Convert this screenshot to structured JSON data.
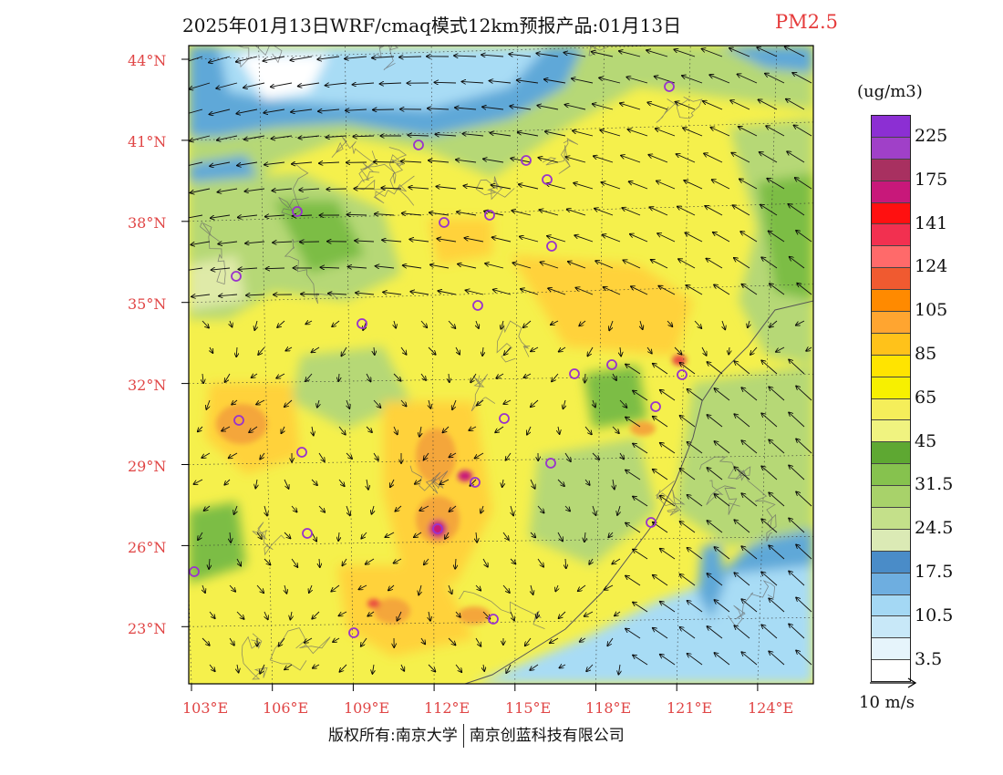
{
  "title": {
    "main": "2025年01月13日WRF/cmaq模式12km预报产品:01月13日",
    "species": "PM2.5"
  },
  "map": {
    "lat_labels": [
      "44°N",
      "41°N",
      "38°N",
      "35°N",
      "32°N",
      "29°N",
      "26°N",
      "23°N"
    ],
    "lon_labels": [
      "103°E",
      "106°E",
      "109°E",
      "112°E",
      "115°E",
      "118°E",
      "121°E",
      "124°E"
    ],
    "colors": {
      "sea_shallow": "#a8dcf5",
      "sea_mid": "#5fa8d8",
      "sea_deep": "#3f86c6",
      "low_green": "#7cbd45",
      "mid_green": "#b6d876",
      "pale_green": "#dfeaa8",
      "yellow": "#f5f04c",
      "gold": "#ffd23a",
      "orange": "#f4a63a",
      "hot": "#e94a40",
      "magenta": "#c8187a",
      "label_red": "#e04545",
      "city_marker": "#9933cc"
    }
  },
  "legend": {
    "unit": "(ug/m3)",
    "levels": [
      {
        "label": "225",
        "color": "#8c2fd3"
      },
      {
        "label": "",
        "color": "#a040c8"
      },
      {
        "label": "175",
        "color": "#a83060"
      },
      {
        "label": "",
        "color": "#c8187a"
      },
      {
        "label": "141",
        "color": "#ff1010"
      },
      {
        "label": "",
        "color": "#f23050"
      },
      {
        "label": "124",
        "color": "#ff6a6a"
      },
      {
        "label": "",
        "color": "#f05a30"
      },
      {
        "label": "105",
        "color": "#ff8a00"
      },
      {
        "label": "",
        "color": "#ffa530"
      },
      {
        "label": "85",
        "color": "#ffc21a"
      },
      {
        "label": "",
        "color": "#ffe400"
      },
      {
        "label": "65",
        "color": "#f7f000"
      },
      {
        "label": "",
        "color": "#f5ee5a"
      },
      {
        "label": "45",
        "color": "#f0f380"
      },
      {
        "label": "",
        "color": "#5ea832"
      },
      {
        "label": "31.5",
        "color": "#86c24e"
      },
      {
        "label": "",
        "color": "#a8d26a"
      },
      {
        "label": "24.5",
        "color": "#c4e08a"
      },
      {
        "label": "",
        "color": "#dbeab5"
      },
      {
        "label": "17.5",
        "color": "#4a8cc8"
      },
      {
        "label": "",
        "color": "#6eaee0"
      },
      {
        "label": "10.5",
        "color": "#a4d8f4"
      },
      {
        "label": "",
        "color": "#c8e8f8"
      },
      {
        "label": "3.5",
        "color": "#e6f4fb"
      },
      {
        "label": "",
        "color": "#ffffff"
      }
    ]
  },
  "wind_reference": {
    "label": "10 m/s"
  },
  "copyright": {
    "left": "版权所有:南京大学",
    "right": "南京创蓝科技有限公司"
  }
}
